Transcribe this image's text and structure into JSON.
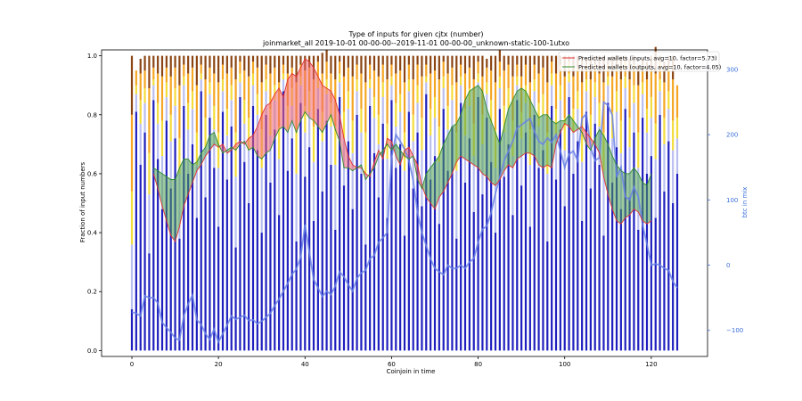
{
  "chart_data": {
    "type": "bar",
    "title": "Type of inputs for given cjtx (number)",
    "subtitle": "joinmarket_all 2019-10-01 00-00-00--2019-11-01 00-00-00_unknown-static-100-1utxo",
    "xlabel": "Coinjoin in time",
    "ylabel": "Fraction of input numbers",
    "y2label": "btc in mix",
    "xlim": [
      -7,
      133
    ],
    "ylim": [
      -0.02,
      1.02
    ],
    "y2lim": [
      -140,
      330
    ],
    "xticks": [
      0,
      20,
      40,
      60,
      80,
      100,
      120
    ],
    "yticks": [
      0.0,
      0.2,
      0.4,
      0.6,
      0.8,
      1.0
    ],
    "y2ticks": [
      -100,
      0,
      100,
      200,
      300
    ],
    "legend_position": "top-right",
    "colors": {
      "bar_base": "#1f1fbf",
      "bar_light": "#b9bef0",
      "bar_yellow": "#f4dc3c",
      "bar_orange": "#f5a623",
      "bar_brown": "#8b4513",
      "inputs_line": "#e03030",
      "outputs_line": "#2e8b2e",
      "fill_red": "#f06470",
      "fill_green": "#4ea04e",
      "btc_line": "#6a82e8"
    },
    "legend": [
      {
        "label": "Predicted wallets (inputs, avg=10, factor=5.73)",
        "color": "#e03030"
      },
      {
        "label": "Predicted wallets (outputs, avg=10, factor=4.05)",
        "color": "#2e8b2e"
      }
    ],
    "bar_x": [
      0,
      1,
      2,
      3,
      4,
      5,
      6,
      7,
      8,
      9,
      10,
      11,
      12,
      13,
      14,
      15,
      16,
      17,
      18,
      19,
      20,
      21,
      22,
      23,
      24,
      25,
      26,
      27,
      28,
      29,
      30,
      31,
      32,
      33,
      34,
      35,
      36,
      37,
      38,
      39,
      40,
      41,
      42,
      43,
      44,
      45,
      46,
      47,
      48,
      49,
      50,
      51,
      52,
      53,
      54,
      55,
      56,
      57,
      58,
      59,
      60,
      61,
      62,
      63,
      64,
      65,
      66,
      67,
      68,
      69,
      70,
      71,
      72,
      73,
      74,
      75,
      76,
      77,
      78,
      79,
      80,
      81,
      82,
      83,
      84,
      85,
      86,
      87,
      88,
      89,
      90,
      91,
      92,
      93,
      94,
      95,
      96,
      97,
      98,
      99,
      100,
      101,
      102,
      103,
      104,
      105,
      106,
      107,
      108,
      109,
      110,
      111,
      112,
      113,
      114,
      115,
      116,
      117,
      118,
      119,
      120,
      121,
      122,
      123,
      124,
      125,
      126
    ],
    "bar_base_values": [
      0.14,
      0.81,
      0.63,
      0.74,
      0.33,
      0.85,
      0.65,
      0.48,
      0.78,
      0.55,
      0.72,
      0.38,
      0.83,
      0.6,
      0.7,
      0.45,
      0.88,
      0.52,
      0.79,
      0.62,
      0.42,
      0.81,
      0.58,
      0.76,
      0.35,
      0.86,
      0.64,
      0.5,
      0.83,
      0.68,
      0.4,
      0.8,
      0.57,
      0.75,
      0.46,
      0.88,
      0.61,
      0.72,
      0.37,
      0.84,
      0.59,
      0.69,
      0.44,
      0.82,
      0.54,
      0.78,
      0.63,
      0.41,
      0.86,
      0.56,
      0.71,
      0.48,
      0.8,
      0.6,
      0.36,
      0.83,
      0.67,
      0.52,
      0.77,
      0.45,
      0.85,
      0.62,
      0.7,
      0.39,
      0.81,
      0.55,
      0.74,
      0.49,
      0.87,
      0.58,
      0.66,
      0.43,
      0.82,
      0.61,
      0.76,
      0.38,
      0.84,
      0.57,
      0.72,
      0.47,
      0.86,
      0.53,
      0.79,
      0.64,
      0.4,
      0.82,
      0.59,
      0.7,
      0.46,
      0.85,
      0.56,
      0.74,
      0.42,
      0.8,
      0.62,
      0.68,
      0.37,
      0.83,
      0.58,
      0.75,
      0.49,
      0.86,
      0.6,
      0.71,
      0.44,
      0.81,
      0.55,
      0.77,
      0.63,
      0.39,
      0.84,
      0.57,
      0.69,
      0.48,
      0.82,
      0.52,
      0.74,
      0.41,
      0.79,
      0.6,
      0.66,
      0.45,
      0.8,
      0.54,
      0.71,
      0.5,
      0.6
    ],
    "bar_light_values": [
      0.22,
      0.06,
      0.14,
      0.1,
      0.2,
      0.05,
      0.12,
      0.18,
      0.08,
      0.16,
      0.11,
      0.22,
      0.07,
      0.15,
      0.12,
      0.18,
      0.04,
      0.17,
      0.08,
      0.13,
      0.2,
      0.07,
      0.15,
      0.09,
      0.24,
      0.05,
      0.13,
      0.18,
      0.07,
      0.12,
      0.22,
      0.08,
      0.16,
      0.1,
      0.19,
      0.04,
      0.14,
      0.11,
      0.23,
      0.06,
      0.15,
      0.12,
      0.2,
      0.07,
      0.17,
      0.09,
      0.13,
      0.22,
      0.05,
      0.16,
      0.11,
      0.19,
      0.08,
      0.14,
      0.24,
      0.06,
      0.12,
      0.18,
      0.09,
      0.2,
      0.05,
      0.14,
      0.11,
      0.22,
      0.07,
      0.16,
      0.1,
      0.19,
      0.04,
      0.15,
      0.13,
      0.21,
      0.07,
      0.14,
      0.09,
      0.23,
      0.06,
      0.16,
      0.11,
      0.19,
      0.05,
      0.17,
      0.08,
      0.13,
      0.22,
      0.07,
      0.15,
      0.12,
      0.2,
      0.05,
      0.16,
      0.1,
      0.21,
      0.08,
      0.14,
      0.12,
      0.23,
      0.07,
      0.15,
      0.1,
      0.19,
      0.05,
      0.14,
      0.11,
      0.2,
      0.07,
      0.16,
      0.09,
      0.13,
      0.22,
      0.06,
      0.15,
      0.12,
      0.19,
      0.07,
      0.17,
      0.1,
      0.21,
      0.08,
      0.14,
      0.13,
      0.2,
      0.08,
      0.16,
      0.11,
      0.18,
      0.12
    ],
    "bar_yellow_values": [
      0.18,
      0.03,
      0.08,
      0.05,
      0.14,
      0.02,
      0.07,
      0.12,
      0.05,
      0.09,
      0.06,
      0.12,
      0.03,
      0.09,
      0.06,
      0.11,
      0.02,
      0.1,
      0.04,
      0.08,
      0.12,
      0.04,
      0.09,
      0.05,
      0.15,
      0.03,
      0.08,
      0.11,
      0.04,
      0.07,
      0.13,
      0.04,
      0.09,
      0.05,
      0.11,
      0.02,
      0.08,
      0.06,
      0.14,
      0.03,
      0.09,
      0.07,
      0.12,
      0.04,
      0.1,
      0.05,
      0.08,
      0.13,
      0.03,
      0.09,
      0.06,
      0.11,
      0.04,
      0.08,
      0.14,
      0.03,
      0.07,
      0.1,
      0.05,
      0.12,
      0.03,
      0.08,
      0.06,
      0.13,
      0.04,
      0.09,
      0.06,
      0.11,
      0.02,
      0.09,
      0.07,
      0.12,
      0.04,
      0.08,
      0.05,
      0.13,
      0.03,
      0.09,
      0.06,
      0.11,
      0.03,
      0.1,
      0.04,
      0.08,
      0.13,
      0.04,
      0.09,
      0.07,
      0.12,
      0.03,
      0.09,
      0.06,
      0.12,
      0.04,
      0.08,
      0.07,
      0.14,
      0.04,
      0.09,
      0.05,
      0.11,
      0.03,
      0.08,
      0.06,
      0.12,
      0.04,
      0.09,
      0.05,
      0.08,
      0.13,
      0.03,
      0.09,
      0.07,
      0.11,
      0.04,
      0.1,
      0.06,
      0.12,
      0.04,
      0.08,
      0.07,
      0.12,
      0.04,
      0.09,
      0.06,
      0.1,
      0.07
    ],
    "bar_orange_values": [
      0.26,
      0.05,
      0.09,
      0.06,
      0.22,
      0.04,
      0.1,
      0.15,
      0.05,
      0.13,
      0.07,
      0.18,
      0.04,
      0.1,
      0.08,
      0.16,
      0.03,
      0.13,
      0.05,
      0.11,
      0.17,
      0.05,
      0.12,
      0.06,
      0.18,
      0.04,
      0.1,
      0.14,
      0.04,
      0.09,
      0.16,
      0.05,
      0.12,
      0.06,
      0.15,
      0.03,
      0.11,
      0.07,
      0.17,
      0.04,
      0.12,
      0.08,
      0.16,
      0.05,
      0.13,
      0.06,
      0.1,
      0.16,
      0.04,
      0.12,
      0.08,
      0.15,
      0.05,
      0.12,
      0.17,
      0.05,
      0.09,
      0.13,
      0.06,
      0.15,
      0.04,
      0.1,
      0.08,
      0.17,
      0.05,
      0.12,
      0.07,
      0.14,
      0.04,
      0.12,
      0.09,
      0.16,
      0.05,
      0.11,
      0.06,
      0.17,
      0.04,
      0.12,
      0.07,
      0.15,
      0.04,
      0.13,
      0.05,
      0.1,
      0.16,
      0.05,
      0.12,
      0.08,
      0.15,
      0.04,
      0.12,
      0.07,
      0.16,
      0.05,
      0.1,
      0.09,
      0.17,
      0.04,
      0.12,
      0.07,
      0.14,
      0.04,
      0.11,
      0.08,
      0.15,
      0.05,
      0.12,
      0.06,
      0.1,
      0.17,
      0.04,
      0.12,
      0.08,
      0.14,
      0.05,
      0.13,
      0.07,
      0.16,
      0.05,
      0.1,
      0.09,
      0.17,
      0.06,
      0.12,
      0.08,
      0.14,
      0.11
    ],
    "bar_brown_values": [
      0.2,
      0.0,
      0.05,
      0.05,
      0.11,
      0.04,
      0.06,
      0.07,
      0.04,
      0.07,
      0.04,
      0.1,
      0.03,
      0.06,
      0.04,
      0.1,
      0.03,
      0.08,
      0.04,
      0.06,
      0.09,
      0.03,
      0.06,
      0.04,
      0.08,
      0.02,
      0.05,
      0.07,
      0.02,
      0.04,
      0.09,
      0.03,
      0.06,
      0.04,
      0.09,
      0.03,
      0.06,
      0.04,
      0.09,
      0.03,
      0.05,
      0.04,
      0.08,
      0.02,
      0.07,
      0.04,
      0.06,
      0.08,
      0.02,
      0.07,
      0.04,
      0.07,
      0.03,
      0.06,
      0.09,
      0.03,
      0.05,
      0.07,
      0.03,
      0.08,
      0.03,
      0.06,
      0.05,
      0.09,
      0.03,
      0.08,
      0.03,
      0.07,
      0.03,
      0.06,
      0.05,
      0.08,
      0.02,
      0.06,
      0.04,
      0.09,
      0.03,
      0.06,
      0.04,
      0.08,
      0.02,
      0.07,
      0.03,
      0.05,
      0.09,
      0.04,
      0.05,
      0.03,
      0.07,
      0.03,
      0.07,
      0.03,
      0.09,
      0.03,
      0.06,
      0.04,
      0.09,
      0.02,
      0.06,
      0.03,
      0.07,
      0.02,
      0.07,
      0.04,
      0.09,
      0.02,
      0.07,
      0.03,
      0.06,
      0.09,
      0.02,
      0.07,
      0.04,
      0.08,
      0.02,
      0.07,
      0.03,
      0.07,
      0.03,
      0.06,
      0.05,
      0.09,
      0.02,
      0.07,
      0.04,
      0.08,
      0.0
    ],
    "x_wallets": [
      5,
      6,
      7,
      8,
      9,
      10,
      11,
      12,
      13,
      14,
      15,
      16,
      17,
      18,
      19,
      20,
      21,
      22,
      23,
      24,
      25,
      26,
      27,
      28,
      29,
      30,
      31,
      32,
      33,
      34,
      35,
      36,
      37,
      38,
      39,
      40,
      41,
      42,
      43,
      44,
      45,
      46,
      47,
      48,
      49,
      50,
      51,
      52,
      53,
      54,
      55,
      56,
      57,
      58,
      59,
      60,
      61,
      62,
      63,
      64,
      65,
      66,
      67,
      68,
      69,
      70,
      71,
      72,
      73,
      74,
      75,
      76,
      77,
      78,
      79,
      80,
      81,
      82,
      83,
      84,
      85,
      86,
      87,
      88,
      89,
      90,
      91,
      92,
      93,
      94,
      95,
      96,
      97,
      98,
      99,
      100,
      101,
      102,
      103,
      104,
      105,
      106,
      107,
      108,
      109,
      110,
      111,
      112,
      113,
      114,
      115,
      116,
      117,
      118,
      119,
      120
    ],
    "inputs_values": [
      0.6,
      0.55,
      0.49,
      0.44,
      0.39,
      0.37,
      0.42,
      0.49,
      0.53,
      0.57,
      0.61,
      0.63,
      0.66,
      0.68,
      0.7,
      0.69,
      0.7,
      0.67,
      0.68,
      0.7,
      0.71,
      0.7,
      0.72,
      0.73,
      0.76,
      0.8,
      0.83,
      0.84,
      0.87,
      0.89,
      0.86,
      0.92,
      0.94,
      0.93,
      0.96,
      0.99,
      0.98,
      0.96,
      0.93,
      0.9,
      0.89,
      0.88,
      0.85,
      0.8,
      0.72,
      0.66,
      0.63,
      0.62,
      0.62,
      0.6,
      0.59,
      0.64,
      0.68,
      0.65,
      0.72,
      0.71,
      0.66,
      0.63,
      0.68,
      0.69,
      0.66,
      0.63,
      0.56,
      0.52,
      0.5,
      0.48,
      0.52,
      0.54,
      0.57,
      0.6,
      0.64,
      0.66,
      0.65,
      0.64,
      0.63,
      0.62,
      0.6,
      0.59,
      0.57,
      0.56,
      0.58,
      0.61,
      0.63,
      0.62,
      0.65,
      0.66,
      0.67,
      0.67,
      0.66,
      0.63,
      0.62,
      0.63,
      0.62,
      0.7,
      0.74,
      0.77,
      0.76,
      0.74,
      0.75,
      0.76,
      0.74,
      0.72,
      0.7,
      0.67,
      0.59,
      0.53,
      0.48,
      0.44,
      0.43,
      0.45,
      0.46,
      0.48,
      0.47,
      0.44,
      0.43,
      0.44
    ],
    "outputs_values": [
      0.62,
      0.61,
      0.6,
      0.59,
      0.58,
      0.58,
      0.62,
      0.65,
      0.65,
      0.63,
      0.64,
      0.67,
      0.69,
      0.73,
      0.74,
      0.7,
      0.67,
      0.68,
      0.69,
      0.68,
      0.7,
      0.71,
      0.68,
      0.69,
      0.66,
      0.65,
      0.67,
      0.68,
      0.72,
      0.75,
      0.76,
      0.74,
      0.78,
      0.74,
      0.78,
      0.81,
      0.79,
      0.78,
      0.76,
      0.74,
      0.77,
      0.8,
      0.75,
      0.71,
      0.62,
      0.62,
      0.61,
      0.62,
      0.63,
      0.58,
      0.6,
      0.62,
      0.66,
      0.68,
      0.7,
      0.68,
      0.7,
      0.68,
      0.66,
      0.65,
      0.66,
      0.58,
      0.55,
      0.6,
      0.62,
      0.64,
      0.66,
      0.7,
      0.73,
      0.76,
      0.77,
      0.8,
      0.85,
      0.88,
      0.89,
      0.9,
      0.88,
      0.82,
      0.78,
      0.74,
      0.7,
      0.76,
      0.82,
      0.85,
      0.88,
      0.89,
      0.88,
      0.85,
      0.82,
      0.79,
      0.8,
      0.8,
      0.78,
      0.77,
      0.78,
      0.78,
      0.8,
      0.78,
      0.76,
      0.74,
      0.7,
      0.68,
      0.72,
      0.75,
      0.73,
      0.7,
      0.66,
      0.63,
      0.61,
      0.6,
      0.6,
      0.62,
      0.6,
      0.57,
      0.56,
      0.6
    ],
    "btc_x": [
      0,
      1,
      2,
      3,
      4,
      5,
      6,
      7,
      8,
      9,
      10,
      11,
      12,
      13,
      14,
      15,
      16,
      17,
      18,
      19,
      20,
      21,
      22,
      23,
      24,
      25,
      26,
      27,
      28,
      29,
      30,
      31,
      32,
      33,
      34,
      35,
      36,
      37,
      38,
      39,
      40,
      41,
      42,
      43,
      44,
      45,
      46,
      47,
      48,
      49,
      50,
      51,
      52,
      53,
      54,
      55,
      56,
      57,
      58,
      59,
      60,
      61,
      62,
      63,
      64,
      65,
      66,
      67,
      68,
      69,
      70,
      71,
      72,
      73,
      74,
      75,
      76,
      77,
      78,
      79,
      80,
      81,
      82,
      83,
      84,
      85,
      86,
      87,
      88,
      89,
      90,
      91,
      92,
      93,
      94,
      95,
      96,
      97,
      98,
      99,
      100,
      101,
      102,
      103,
      104,
      105,
      106,
      107,
      108,
      109,
      110,
      111,
      112,
      113,
      114,
      115,
      116,
      117,
      118,
      119,
      120,
      121,
      122,
      123,
      124,
      125,
      126
    ],
    "btc_values": [
      -72,
      -74,
      -78,
      -47,
      -50,
      -50,
      -58,
      -88,
      -96,
      -103,
      -112,
      -115,
      -78,
      -60,
      -46,
      -84,
      -91,
      -105,
      -114,
      -98,
      -118,
      -105,
      -92,
      -78,
      -83,
      -80,
      -77,
      -85,
      -84,
      -90,
      -86,
      -80,
      -74,
      -62,
      -52,
      -40,
      -28,
      -14,
      -6,
      12,
      62,
      20,
      -22,
      -35,
      -48,
      -40,
      -45,
      -32,
      -10,
      -18,
      -30,
      -40,
      -20,
      -12,
      -8,
      10,
      15,
      35,
      42,
      50,
      165,
      200,
      190,
      178,
      160,
      130,
      80,
      50,
      30,
      10,
      -5,
      -10,
      -15,
      0,
      -5,
      -5,
      0,
      -5,
      5,
      10,
      35,
      55,
      60,
      80,
      110,
      135,
      160,
      175,
      190,
      210,
      215,
      220,
      225,
      205,
      190,
      185,
      195,
      188,
      200,
      175,
      150,
      170,
      175,
      160,
      225,
      232,
      180,
      160,
      165,
      250,
      245,
      230,
      135,
      150,
      105,
      100,
      120,
      105,
      62,
      32,
      0,
      2,
      0,
      -5,
      -8,
      -25,
      -35
    ]
  }
}
